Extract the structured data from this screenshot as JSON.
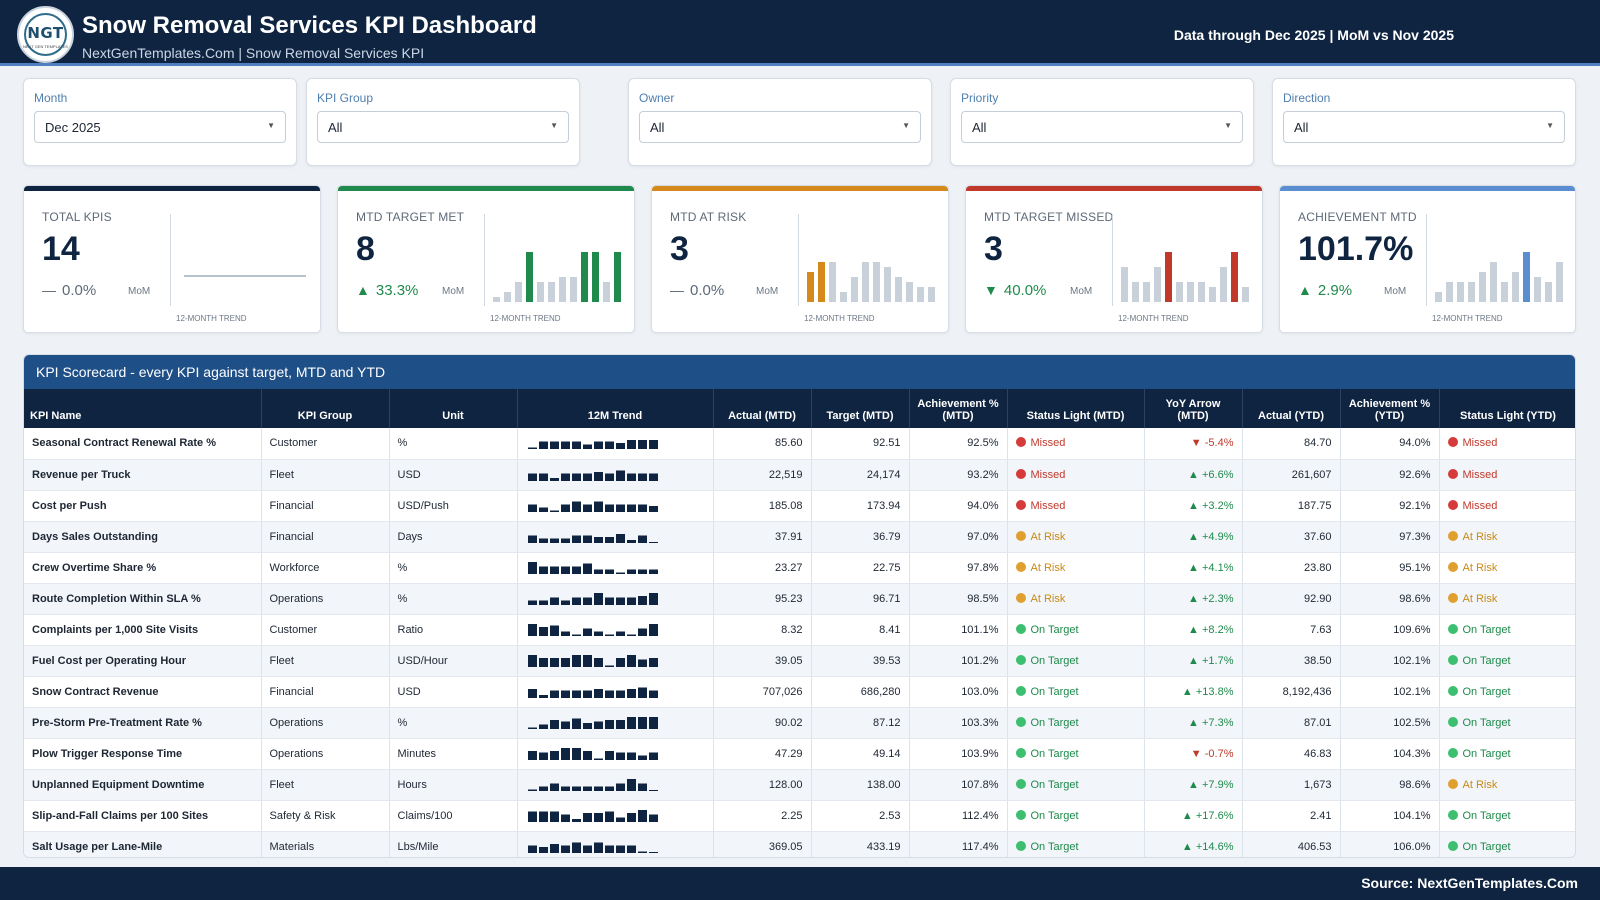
{
  "header": {
    "logo_text": "NGT",
    "logo_sub": "NEXT GEN TEMPLATES",
    "title": "Snow Removal Services KPI Dashboard",
    "subtitle": "NextGenTemplates.Com | Snow Removal Services KPI",
    "data_through": "Data through Dec 2025 | MoM vs Nov 2025"
  },
  "filters": [
    {
      "label": "Month",
      "value": "Dec 2025"
    },
    {
      "label": "KPI Group",
      "value": "All"
    },
    {
      "label": "Owner",
      "value": "All"
    },
    {
      "label": "Priority",
      "value": "All"
    },
    {
      "label": "Direction",
      "value": "All"
    }
  ],
  "cards": [
    {
      "label": "TOTAL KPIS",
      "value": "14",
      "change": "0.0%",
      "direction": "flat",
      "mom": "MoM",
      "caption": "12-MONTH TREND",
      "accent": "#0f2440",
      "highlight": "#0f2440",
      "trend": [],
      "hi": []
    },
    {
      "label": "MTD TARGET MET",
      "value": "8",
      "change": "33.3%",
      "direction": "up",
      "mom": "MoM",
      "caption": "12-MONTH TREND",
      "accent": "#1f8a4c",
      "highlight": "#1f8a4c",
      "trend": [
        1,
        2,
        4,
        10,
        4,
        4,
        5,
        5,
        10,
        10,
        4,
        10
      ],
      "hi": [
        3,
        8,
        9,
        11
      ]
    },
    {
      "label": "MTD AT RISK",
      "value": "3",
      "change": "0.0%",
      "direction": "flat",
      "mom": "MoM",
      "caption": "12-MONTH TREND",
      "accent": "#d4891a",
      "highlight": "#d4891a",
      "trend": [
        6,
        8,
        8,
        2,
        5,
        8,
        8,
        7,
        5,
        4,
        3,
        3
      ],
      "hi": [
        0,
        1
      ]
    },
    {
      "label": "MTD TARGET MISSED",
      "value": "3",
      "change": "40.0%",
      "direction": "down",
      "mom": "MoM",
      "caption": "12-MONTH TREND",
      "accent": "#c0392b",
      "highlight": "#c0392b",
      "trend": [
        7,
        4,
        4,
        7,
        10,
        4,
        4,
        4,
        3,
        7,
        10,
        3
      ],
      "hi": [
        4,
        10
      ]
    },
    {
      "label": "ACHIEVEMENT MTD",
      "value": "101.7%",
      "change": "2.9%",
      "direction": "up",
      "mom": "MoM",
      "caption": "12-MONTH TREND",
      "accent": "#5b8ed0",
      "highlight": "#5b8ed0",
      "trend": [
        2,
        4,
        4,
        4,
        6,
        8,
        4,
        6,
        10,
        5,
        4,
        8
      ],
      "hi": [
        8
      ]
    }
  ],
  "scorecard": {
    "title": "KPI Scorecard - every KPI against target, MTD and YTD",
    "columns": [
      "KPI Name",
      "KPI Group",
      "Unit",
      "12M Trend",
      "Actual (MTD)",
      "Target (MTD)",
      "Achievement % (MTD)",
      "Status Light (MTD)",
      "YoY Arrow (MTD)",
      "Actual (YTD)",
      "Achievement % (YTD)",
      "Status Light (YTD)"
    ],
    "status_colors": {
      "Missed": "#d63b3b",
      "At Risk": "#e0a030",
      "On Target": "#3cbf6f"
    },
    "rows": [
      {
        "name": "Seasonal Contract Renewal Rate %",
        "group": "Customer",
        "unit": "%",
        "trend": [
          1,
          5,
          5,
          5,
          5,
          3,
          5,
          5,
          4,
          6,
          6,
          6
        ],
        "actual_mtd": "85.60",
        "target_mtd": "92.51",
        "ach_mtd": "92.5%",
        "status_mtd": "Missed",
        "yoy": "-5.4%",
        "yoy_dir": "down",
        "actual_ytd": "84.70",
        "ach_ytd": "94.0%",
        "status_ytd": "Missed"
      },
      {
        "name": "Revenue per Truck",
        "group": "Fleet",
        "unit": "USD",
        "trend": [
          5,
          5,
          2,
          5,
          5,
          5,
          6,
          5,
          7,
          5,
          5,
          5
        ],
        "actual_mtd": "22,519",
        "target_mtd": "24,174",
        "ach_mtd": "93.2%",
        "status_mtd": "Missed",
        "yoy": "+6.6%",
        "yoy_dir": "up",
        "actual_ytd": "261,607",
        "ach_ytd": "92.6%",
        "status_ytd": "Missed"
      },
      {
        "name": "Cost per Push",
        "group": "Financial",
        "unit": "USD/Push",
        "trend": [
          5,
          3,
          1,
          5,
          7,
          5,
          7,
          5,
          5,
          5,
          5,
          4
        ],
        "actual_mtd": "185.08",
        "target_mtd": "173.94",
        "ach_mtd": "94.0%",
        "status_mtd": "Missed",
        "yoy": "+3.2%",
        "yoy_dir": "up",
        "actual_ytd": "187.75",
        "ach_ytd": "92.1%",
        "status_ytd": "Missed"
      },
      {
        "name": "Days Sales Outstanding",
        "group": "Financial",
        "unit": "Days",
        "trend": [
          5,
          3,
          3,
          3,
          5,
          5,
          4,
          4,
          6,
          2,
          5,
          0
        ],
        "actual_mtd": "37.91",
        "target_mtd": "36.79",
        "ach_mtd": "97.0%",
        "status_mtd": "At Risk",
        "yoy": "+4.9%",
        "yoy_dir": "up",
        "actual_ytd": "37.60",
        "ach_ytd": "97.3%",
        "status_ytd": "At Risk"
      },
      {
        "name": "Crew Overtime Share %",
        "group": "Workforce",
        "unit": "%",
        "trend": [
          8,
          5,
          5,
          5,
          5,
          7,
          3,
          3,
          1,
          3,
          3,
          3
        ],
        "actual_mtd": "23.27",
        "target_mtd": "22.75",
        "ach_mtd": "97.8%",
        "status_mtd": "At Risk",
        "yoy": "+4.1%",
        "yoy_dir": "up",
        "actual_ytd": "23.80",
        "ach_ytd": "95.1%",
        "status_ytd": "At Risk"
      },
      {
        "name": "Route Completion Within SLA %",
        "group": "Operations",
        "unit": "%",
        "trend": [
          3,
          3,
          5,
          3,
          5,
          5,
          8,
          5,
          5,
          5,
          6,
          8
        ],
        "actual_mtd": "95.23",
        "target_mtd": "96.71",
        "ach_mtd": "98.5%",
        "status_mtd": "At Risk",
        "yoy": "+2.3%",
        "yoy_dir": "up",
        "actual_ytd": "92.90",
        "ach_ytd": "98.6%",
        "status_ytd": "At Risk"
      },
      {
        "name": "Complaints per 1,000 Site Visits",
        "group": "Customer",
        "unit": "Ratio",
        "trend": [
          8,
          6,
          7,
          3,
          1,
          5,
          3,
          1,
          3,
          1,
          5,
          8
        ],
        "actual_mtd": "8.32",
        "target_mtd": "8.41",
        "ach_mtd": "101.1%",
        "status_mtd": "On Target",
        "yoy": "+8.2%",
        "yoy_dir": "up",
        "actual_ytd": "7.63",
        "ach_ytd": "109.6%",
        "status_ytd": "On Target"
      },
      {
        "name": "Fuel Cost per Operating Hour",
        "group": "Fleet",
        "unit": "USD/Hour",
        "trend": [
          8,
          6,
          6,
          6,
          8,
          8,
          6,
          1,
          6,
          8,
          5,
          6
        ],
        "actual_mtd": "39.05",
        "target_mtd": "39.53",
        "ach_mtd": "101.2%",
        "status_mtd": "On Target",
        "yoy": "+1.7%",
        "yoy_dir": "up",
        "actual_ytd": "38.50",
        "ach_ytd": "102.1%",
        "status_ytd": "On Target"
      },
      {
        "name": "Snow Contract Revenue",
        "group": "Financial",
        "unit": "USD",
        "trend": [
          6,
          2,
          5,
          5,
          5,
          5,
          6,
          5,
          5,
          6,
          7,
          5
        ],
        "actual_mtd": "707,026",
        "target_mtd": "686,280",
        "ach_mtd": "103.0%",
        "status_mtd": "On Target",
        "yoy": "+13.8%",
        "yoy_dir": "up",
        "actual_ytd": "8,192,436",
        "ach_ytd": "102.1%",
        "status_ytd": "On Target"
      },
      {
        "name": "Pre-Storm Pre-Treatment Rate %",
        "group": "Operations",
        "unit": "%",
        "trend": [
          1,
          3,
          6,
          5,
          7,
          4,
          5,
          6,
          6,
          8,
          8,
          8
        ],
        "actual_mtd": "90.02",
        "target_mtd": "87.12",
        "ach_mtd": "103.3%",
        "status_mtd": "On Target",
        "yoy": "+7.3%",
        "yoy_dir": "up",
        "actual_ytd": "87.01",
        "ach_ytd": "102.5%",
        "status_ytd": "On Target"
      },
      {
        "name": "Plow Trigger Response Time",
        "group": "Operations",
        "unit": "Minutes",
        "trend": [
          6,
          5,
          6,
          8,
          8,
          6,
          1,
          6,
          5,
          5,
          3,
          5
        ],
        "actual_mtd": "47.29",
        "target_mtd": "49.14",
        "ach_mtd": "103.9%",
        "status_mtd": "On Target",
        "yoy": "-0.7%",
        "yoy_dir": "down",
        "actual_ytd": "46.83",
        "ach_ytd": "104.3%",
        "status_ytd": "On Target"
      },
      {
        "name": "Unplanned Equipment Downtime",
        "group": "Fleet",
        "unit": "Hours",
        "trend": [
          1,
          3,
          5,
          3,
          3,
          3,
          3,
          3,
          5,
          8,
          5,
          0
        ],
        "actual_mtd": "128.00",
        "target_mtd": "138.00",
        "ach_mtd": "107.8%",
        "status_mtd": "On Target",
        "yoy": "+7.9%",
        "yoy_dir": "up",
        "actual_ytd": "1,673",
        "ach_ytd": "98.6%",
        "status_ytd": "At Risk"
      },
      {
        "name": "Slip-and-Fall Claims per 100 Sites",
        "group": "Safety & Risk",
        "unit": "Claims/100",
        "trend": [
          7,
          7,
          7,
          5,
          2,
          6,
          6,
          7,
          3,
          6,
          8,
          5
        ],
        "actual_mtd": "2.25",
        "target_mtd": "2.53",
        "ach_mtd": "112.4%",
        "status_mtd": "On Target",
        "yoy": "+17.6%",
        "yoy_dir": "up",
        "actual_ytd": "2.41",
        "ach_ytd": "104.1%",
        "status_ytd": "On Target"
      },
      {
        "name": "Salt Usage per Lane-Mile",
        "group": "Materials",
        "unit": "Lbs/Mile",
        "trend": [
          5,
          4,
          6,
          5,
          7,
          5,
          7,
          5,
          5,
          5,
          1,
          0
        ],
        "actual_mtd": "369.05",
        "target_mtd": "433.19",
        "ach_mtd": "117.4%",
        "status_mtd": "On Target",
        "yoy": "+14.6%",
        "yoy_dir": "up",
        "actual_ytd": "406.53",
        "ach_ytd": "106.0%",
        "status_ytd": "On Target"
      }
    ]
  },
  "footer": {
    "source": "Source: NextGenTemplates.Com"
  }
}
